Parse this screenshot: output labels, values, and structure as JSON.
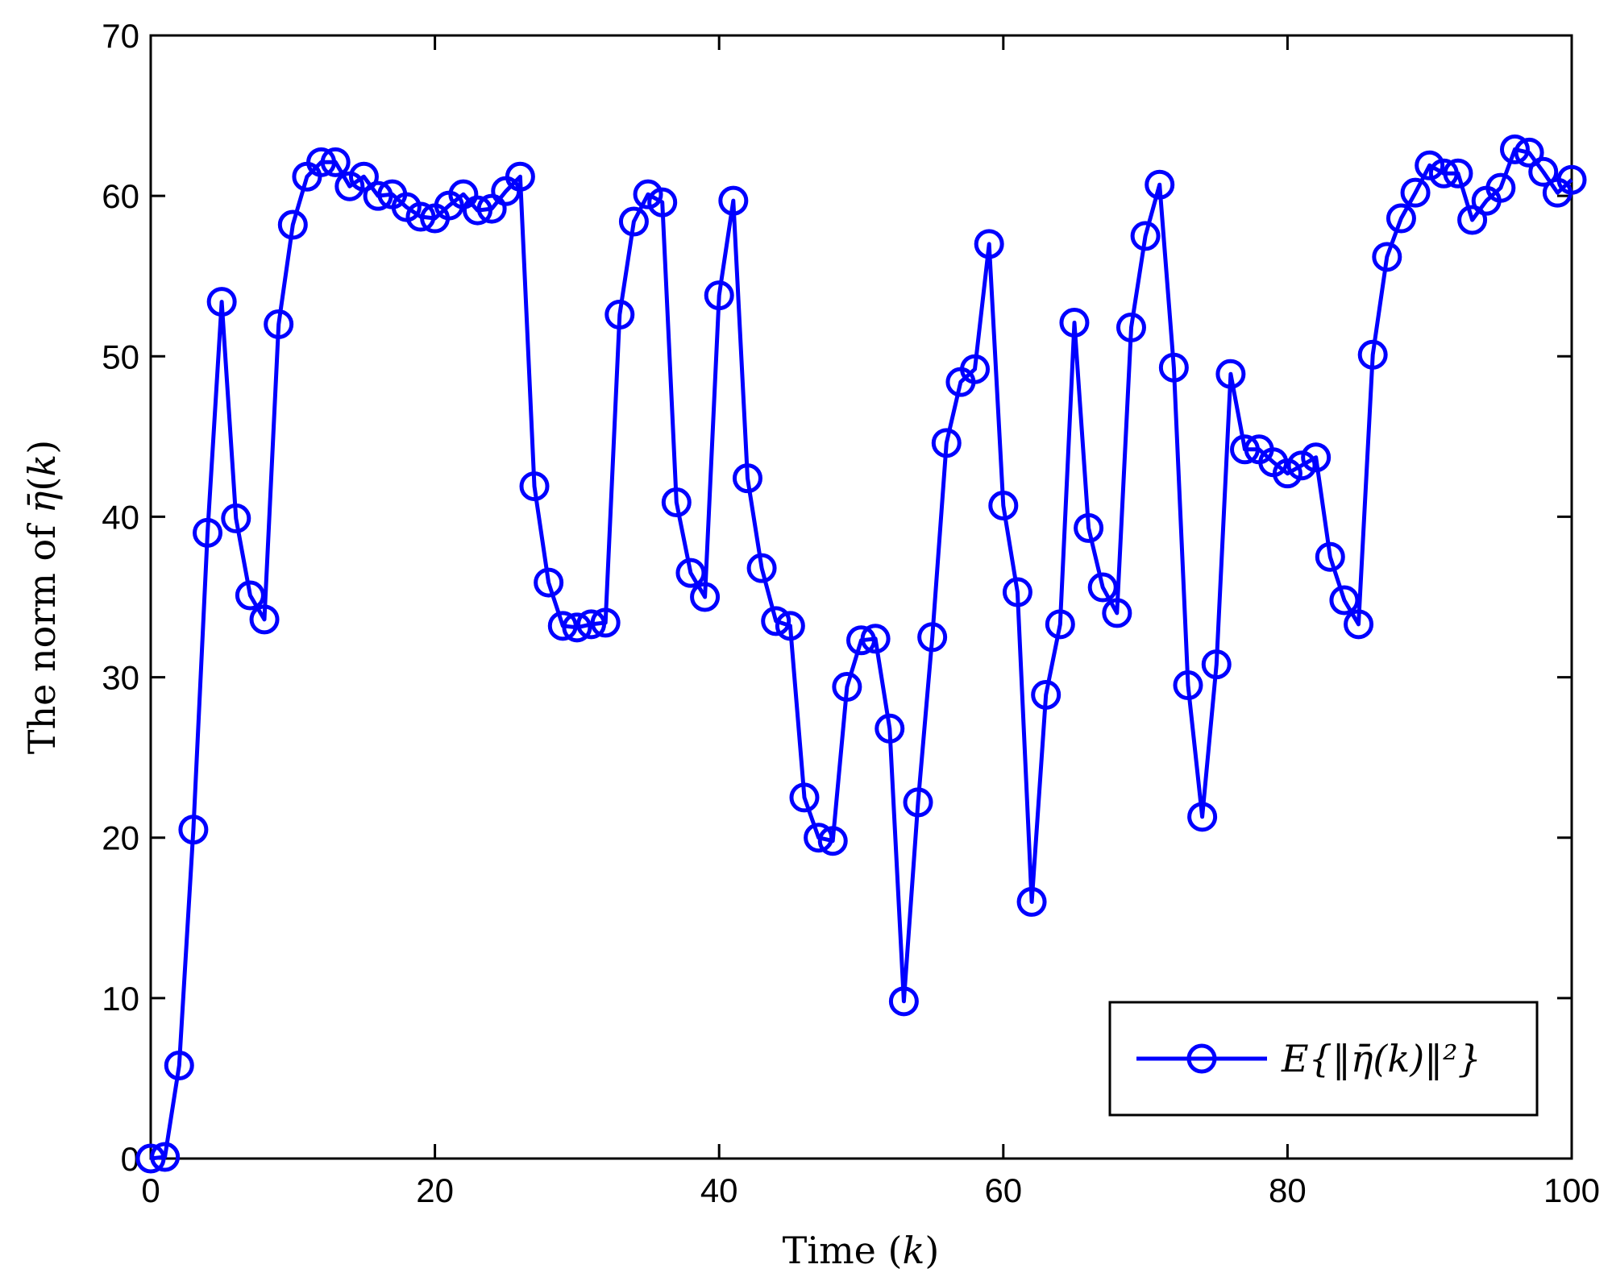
{
  "chart_data": {
    "type": "line",
    "xlabel": "Time (k)",
    "ylabel": "The norm of η̄(k)",
    "xlim": [
      0,
      100
    ],
    "ylim": [
      0,
      70
    ],
    "xticks": [
      "0",
      "20",
      "40",
      "60",
      "80",
      "100"
    ],
    "yticks": [
      "0",
      "10",
      "20",
      "30",
      "40",
      "50",
      "60",
      "70"
    ],
    "grid": false,
    "legend_position": "bottom-right",
    "series": [
      {
        "name": "E{‖η̄(k)‖²}",
        "color": "#0000ff",
        "marker": "circle",
        "x": [
          0,
          1,
          2,
          3,
          4,
          5,
          6,
          7,
          8,
          9,
          10,
          11,
          12,
          13,
          14,
          15,
          16,
          17,
          18,
          19,
          20,
          21,
          22,
          23,
          24,
          25,
          26,
          27,
          28,
          29,
          30,
          31,
          32,
          33,
          34,
          35,
          36,
          37,
          38,
          39,
          40,
          41,
          42,
          43,
          44,
          45,
          46,
          47,
          48,
          49,
          50,
          51,
          52,
          53,
          54,
          55,
          56,
          57,
          58,
          59,
          60,
          61,
          62,
          63,
          64,
          65,
          66,
          67,
          68,
          69,
          70,
          71,
          72,
          73,
          74,
          75,
          76,
          77,
          78,
          79,
          80,
          81,
          82,
          83,
          84,
          85,
          86,
          87,
          88,
          89,
          90,
          91,
          92,
          93,
          94,
          95,
          96,
          97,
          98,
          99,
          100
        ],
        "y": [
          0,
          0.1,
          5.8,
          20.5,
          39,
          53.4,
          39.9,
          35.1,
          33.6,
          52,
          58.2,
          61.2,
          62.1,
          62.1,
          60.6,
          61.2,
          60,
          60.1,
          59.3,
          58.7,
          58.6,
          59.4,
          60.1,
          59.1,
          59.2,
          60.3,
          61.2,
          41.9,
          35.9,
          33.2,
          33.1,
          33.3,
          33.4,
          52.6,
          58.4,
          60.1,
          59.6,
          40.9,
          36.5,
          35,
          53.8,
          59.7,
          42.4,
          36.8,
          33.5,
          33.2,
          22.5,
          20,
          19.8,
          29.4,
          32.3,
          32.4,
          26.8,
          9.8,
          22.2,
          32.5,
          44.6,
          48.4,
          49.2,
          57,
          40.7,
          35.3,
          16,
          28.9,
          33.3,
          52.1,
          39.3,
          35.6,
          34,
          51.8,
          57.5,
          60.7,
          49.3,
          29.5,
          21.3,
          30.8,
          48.9,
          44.2,
          44.2,
          43.4,
          42.7,
          43.2,
          43.7,
          37.5,
          34.8,
          33.3,
          50.1,
          56.2,
          58.6,
          60.2,
          61.9,
          61.4,
          61.4,
          58.5,
          59.7,
          60.5,
          62.9,
          62.7,
          61.5,
          60.2,
          61
        ]
      }
    ]
  }
}
